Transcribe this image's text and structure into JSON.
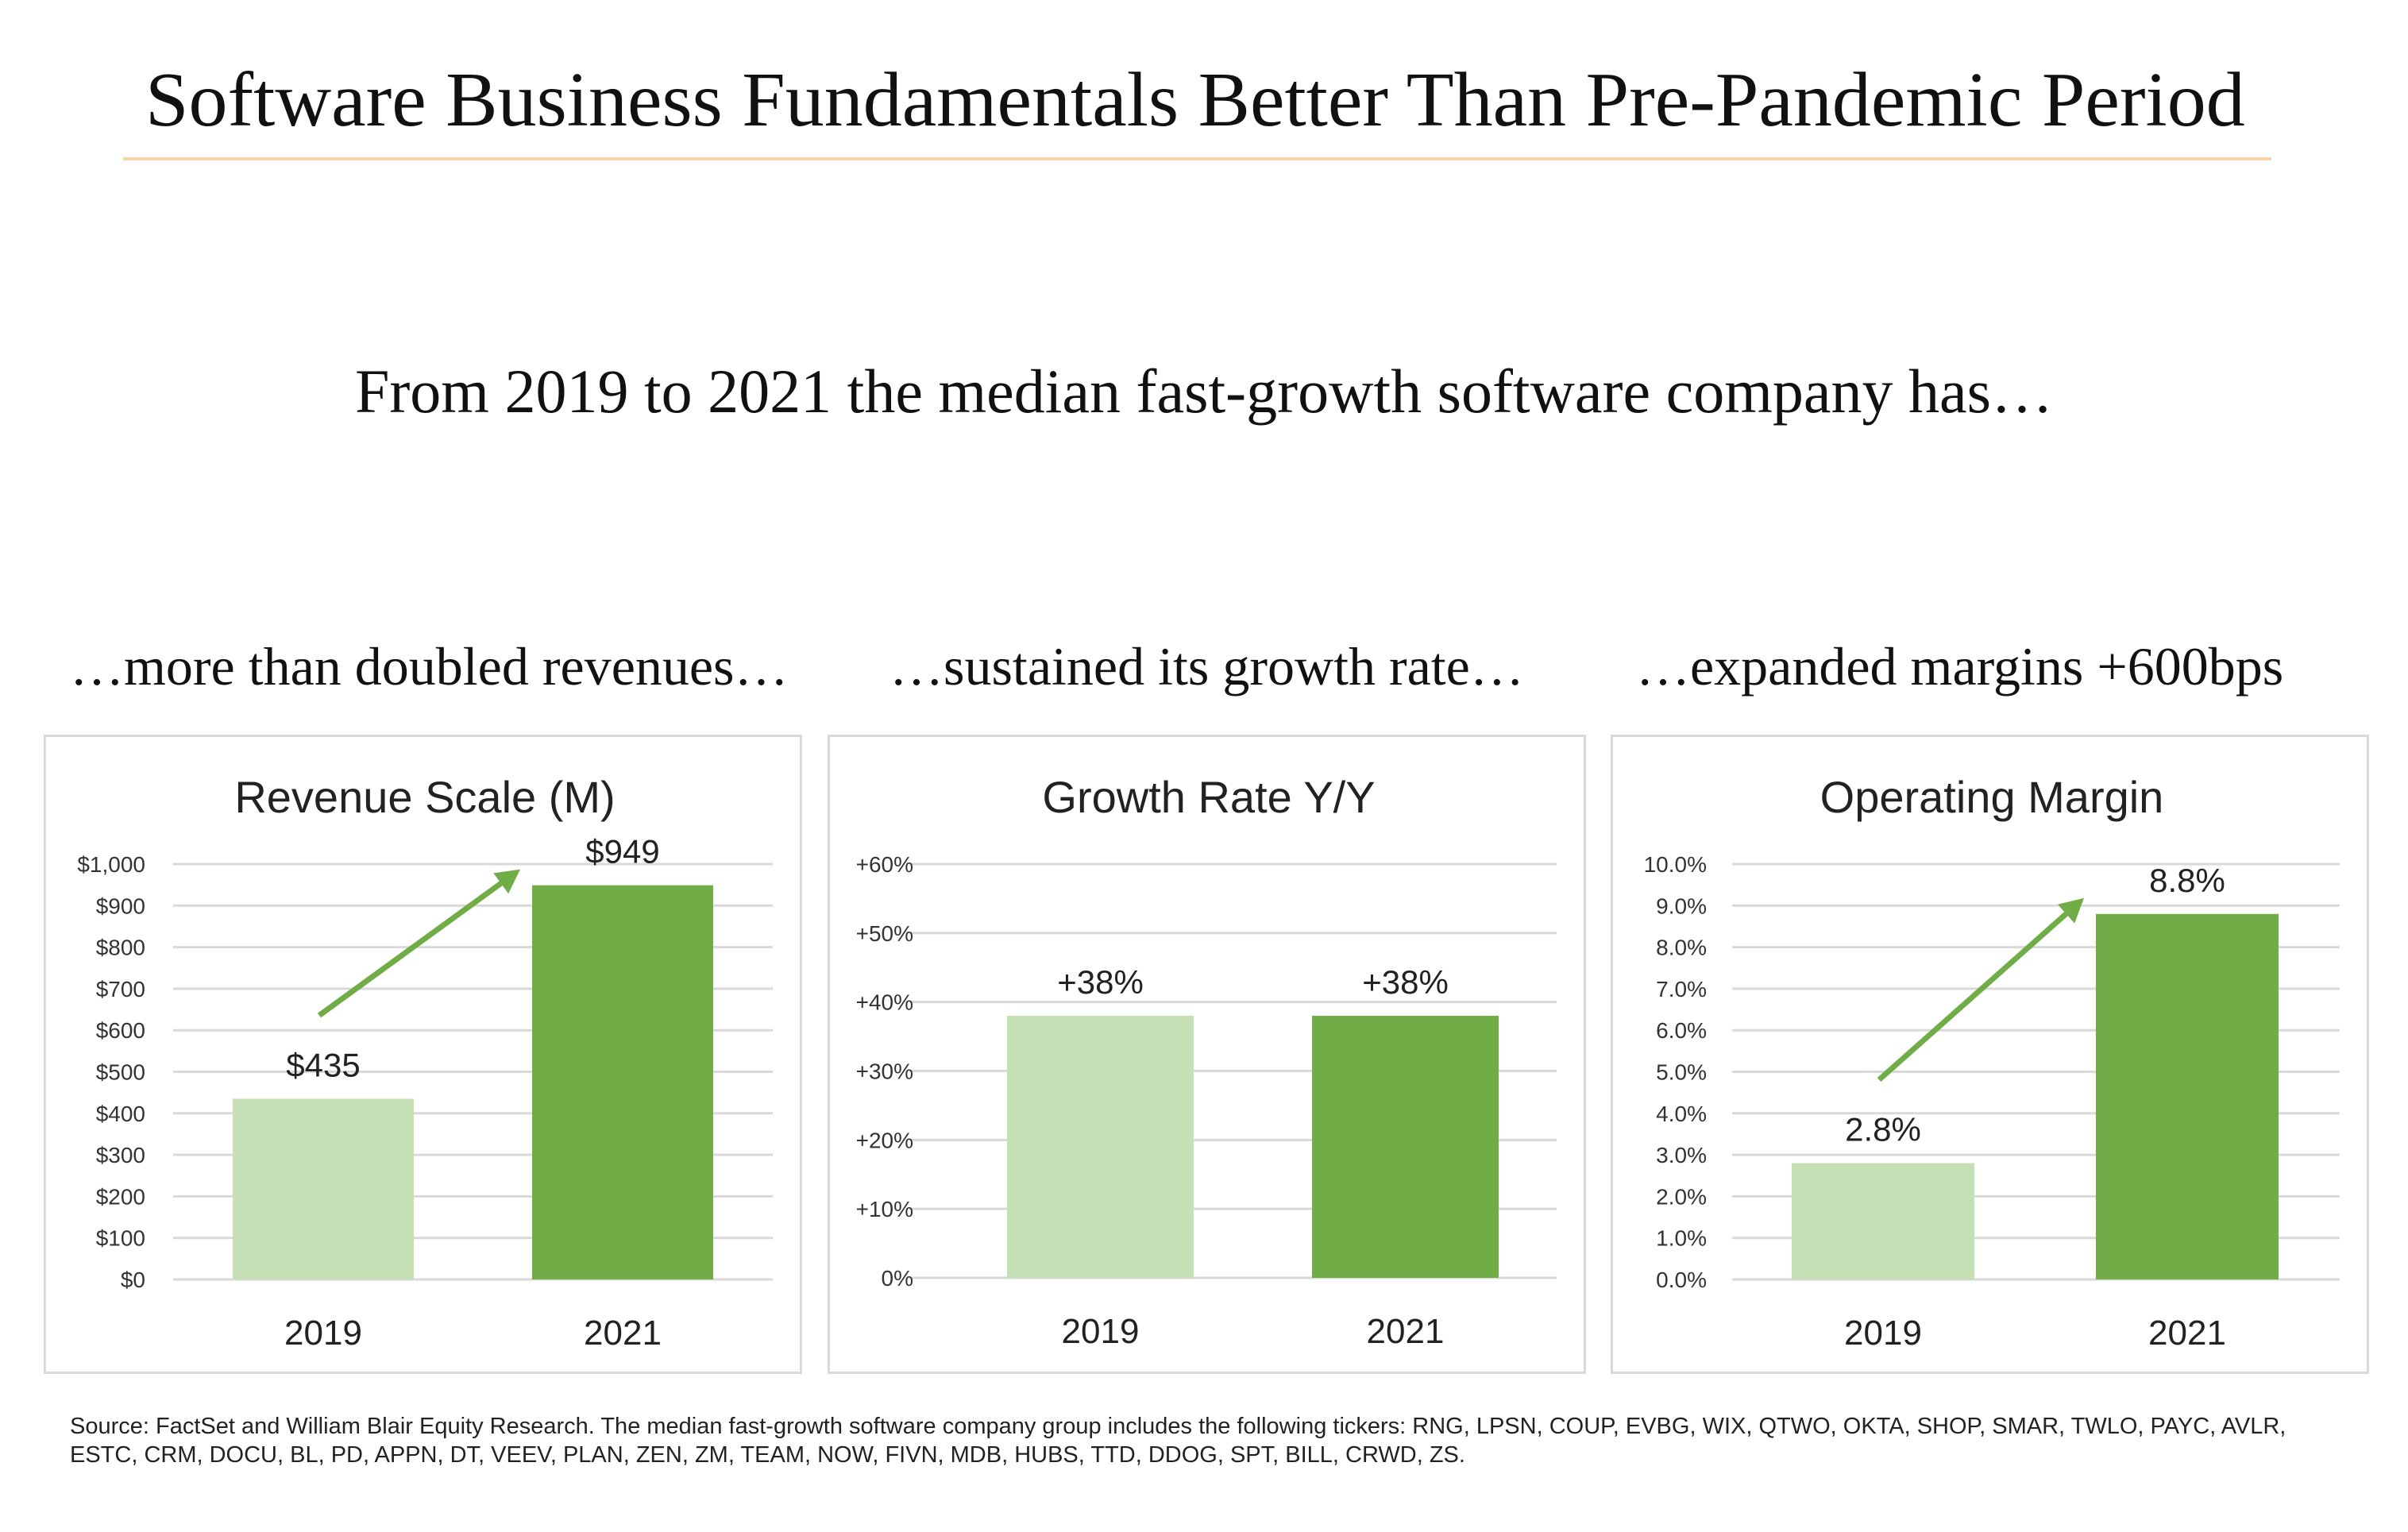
{
  "header": {
    "title": "Software Business Fundamentals Better Than Pre-Pandemic Period",
    "subtitle": "From 2019 to 2021 the median fast-growth software company has…"
  },
  "captions": [
    "…more than doubled revenues…",
    "…sustained its growth rate…",
    "…expanded margins +600bps"
  ],
  "colors": {
    "rule": "#f4d3ad",
    "light_green": "#c5e0b4",
    "dark_green": "#70ad47",
    "grid": "#d9d9d9",
    "arrow": "#70ad47"
  },
  "chart_data": [
    {
      "type": "bar",
      "title": "Revenue Scale (M)",
      "categories": [
        "2019",
        "2021"
      ],
      "values": [
        435,
        949
      ],
      "data_labels": [
        "$435",
        "$949"
      ],
      "ylim": [
        0,
        1000
      ],
      "yticks": [
        "$0",
        "$100",
        "$200",
        "$300",
        "$400",
        "$500",
        "$600",
        "$700",
        "$800",
        "$900",
        "$1,000"
      ],
      "ytick_values": [
        0,
        100,
        200,
        300,
        400,
        500,
        600,
        700,
        800,
        900,
        1000
      ],
      "arrow": true,
      "grid": true
    },
    {
      "type": "bar",
      "title": "Growth Rate Y/Y",
      "categories": [
        "2019",
        "2021"
      ],
      "values": [
        38,
        38
      ],
      "data_labels": [
        "+38%",
        "+38%"
      ],
      "ylim": [
        0,
        60
      ],
      "yticks": [
        "0%",
        "+10%",
        "+20%",
        "+30%",
        "+40%",
        "+50%",
        "+60%"
      ],
      "ytick_values": [
        0,
        10,
        20,
        30,
        40,
        50,
        60
      ],
      "arrow": false,
      "grid": true
    },
    {
      "type": "bar",
      "title": "Operating Margin",
      "categories": [
        "2019",
        "2021"
      ],
      "values": [
        2.8,
        8.8
      ],
      "data_labels": [
        "2.8%",
        "8.8%"
      ],
      "ylim": [
        0,
        10
      ],
      "yticks": [
        "0.0%",
        "1.0%",
        "2.0%",
        "3.0%",
        "4.0%",
        "5.0%",
        "6.0%",
        "7.0%",
        "8.0%",
        "9.0%",
        "10.0%"
      ],
      "ytick_values": [
        0,
        1,
        2,
        3,
        4,
        5,
        6,
        7,
        8,
        9,
        10
      ],
      "arrow": true,
      "grid": true
    }
  ],
  "footer": {
    "source": "Source: FactSet and William Blair Equity Research. The median fast-growth software company group includes the following tickers: RNG, LPSN, COUP, EVBG, WIX, QTWO, OKTA, SHOP, SMAR, TWLO, PAYC, AVLR, ESTC, CRM, DOCU, BL, PD, APPN, DT, VEEV, PLAN, ZEN, ZM, TEAM, NOW, FIVN, MDB, HUBS, TTD, DDOG, SPT, BILL, CRWD, ZS."
  }
}
